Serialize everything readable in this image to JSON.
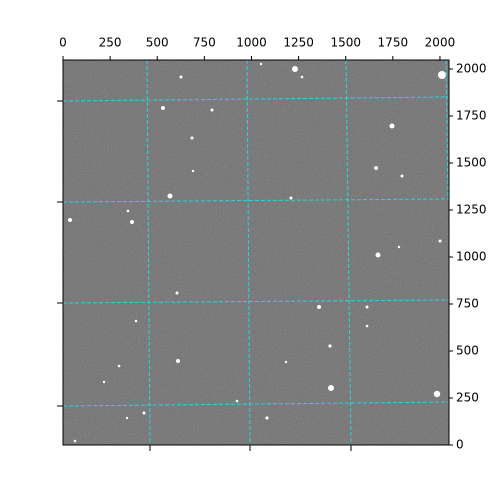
{
  "chart_data": {
    "type": "image",
    "xlim": [
      0,
      2048
    ],
    "ylim": [
      0,
      2048
    ],
    "xticks": [
      0,
      250,
      500,
      750,
      1000,
      1250,
      1500,
      1750,
      2000
    ],
    "yticks": [
      0,
      250,
      500,
      750,
      1000,
      1250,
      1500,
      1750,
      2000
    ]
  }
}
